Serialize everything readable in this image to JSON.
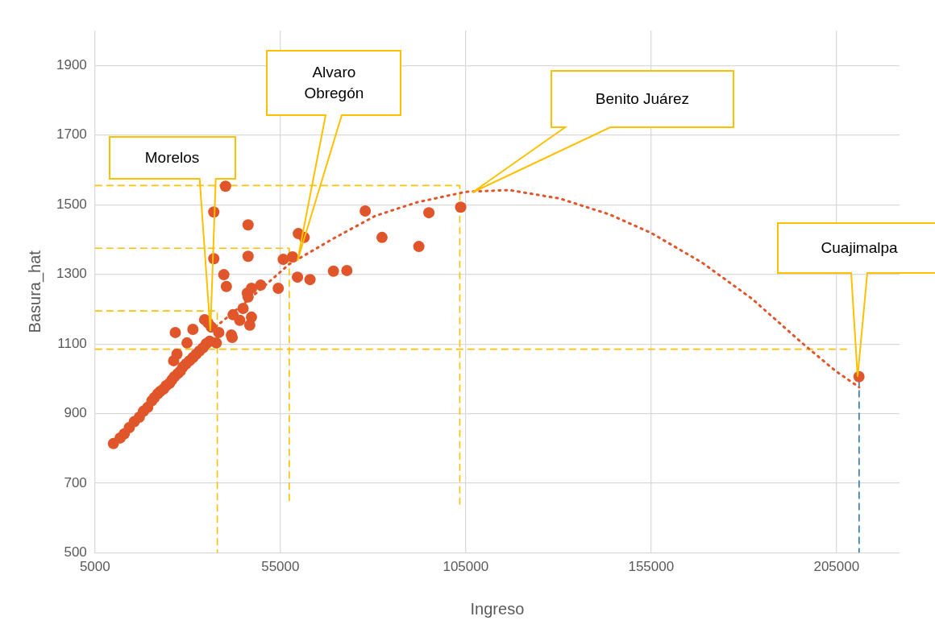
{
  "chart_data": {
    "type": "scatter",
    "xlabel": "Ingreso",
    "ylabel": "Basura_hat",
    "xlim": [
      5000,
      222000
    ],
    "xticks": [
      5000,
      55000,
      105000,
      155000,
      205000
    ],
    "ylim": [
      500,
      2000
    ],
    "yticks": [
      500,
      700,
      900,
      1100,
      1300,
      1500,
      1700,
      1900
    ],
    "grid": true,
    "legend": false,
    "marker": "circle",
    "series": [
      {
        "color": "#e0562a",
        "x": [
          9970,
          11770,
          12900,
          14250,
          15610,
          16960,
          18090,
          19220,
          20350,
          21030,
          21930,
          22610,
          23510,
          24190,
          25090,
          25770,
          26440,
          27340,
          28020,
          28700,
          29600,
          30500,
          31410,
          32310,
          33210,
          34120,
          35020,
          35920,
          37730,
          35470,
          34570,
          36370,
          26670,
          26220,
          27120,
          31410,
          29830,
          38400,
          41790,
          42010,
          40210,
          37050,
          46300,
          59850,
          61430,
          77900,
          37050,
          46300,
          55780,
          58270,
          39760,
          40440,
          59620,
          63000,
          69320,
          72940,
          54430,
          49690,
          47210,
          46080,
          46300,
          44950,
          42240,
          47210,
          44050,
          46750,
          82420,
          92350,
          95060,
          103630,
          211060
        ],
        "values": [
          814,
          830,
          842,
          860,
          877,
          890,
          907,
          918,
          937,
          946,
          957,
          964,
          971,
          980,
          987,
          997,
          1006,
          1015,
          1022,
          1034,
          1043,
          1052,
          1061,
          1071,
          1080,
          1089,
          1101,
          1108,
          1103,
          1161,
          1170,
          1149,
          1133,
          1052,
          1071,
          1142,
          1103,
          1133,
          1126,
          1119,
          1553,
          1479,
          1442,
          1417,
          1406,
          1482,
          1345,
          1352,
          1343,
          1350,
          1299,
          1265,
          1292,
          1285,
          1309,
          1311,
          1260,
          1269,
          1260,
          1246,
          1235,
          1202,
          1184,
          1177,
          1168,
          1154,
          1406,
          1380,
          1477,
          1493,
          1006
        ]
      },
      {
        "type": "line",
        "color": "#e0562a",
        "line_style": "dotted",
        "marker": "none",
        "x": [
          36150,
          46760,
          57370,
          69330,
          80620,
          91900,
          105000,
          116700,
          130300,
          143800,
          155000,
          168700,
          182200,
          195700,
          204800,
          211100
        ],
        "values": [
          1137,
          1230,
          1329,
          1403,
          1468,
          1507,
          1537,
          1542,
          1518,
          1472,
          1419,
          1334,
          1230,
          1103,
          1022,
          976
        ]
      },
      {
        "type": "line",
        "color": "#ffc000",
        "line_style": "dashed",
        "marker": "none",
        "x": [
          5000,
          208000
        ],
        "values": [
          1085,
          1085
        ]
      },
      {
        "type": "line",
        "color": "#ffc000",
        "line_style": "dashed",
        "marker": "none",
        "x": [
          5000,
          38000,
          38000
        ],
        "values": [
          1195,
          1195,
          500
        ]
      },
      {
        "type": "line",
        "color": "#ffc000",
        "line_style": "dashed",
        "marker": "none",
        "x": [
          5000,
          57400,
          57400
        ],
        "values": [
          1375,
          1375,
          640
        ]
      },
      {
        "type": "line",
        "color": "#ffc000",
        "line_style": "dashed",
        "marker": "none",
        "x": [
          5000,
          103400,
          103400
        ],
        "values": [
          1555,
          1555,
          630
        ]
      },
      {
        "type": "line",
        "color": "#2e75b6",
        "line_style": "dashed",
        "marker": "none",
        "x": [
          211100,
          211100
        ],
        "values": [
          1000,
          500
        ]
      }
    ],
    "annotations": [
      "Morelos",
      "Alvaro Obregón",
      "Benito Juárez",
      "Cuajimalpa"
    ]
  }
}
